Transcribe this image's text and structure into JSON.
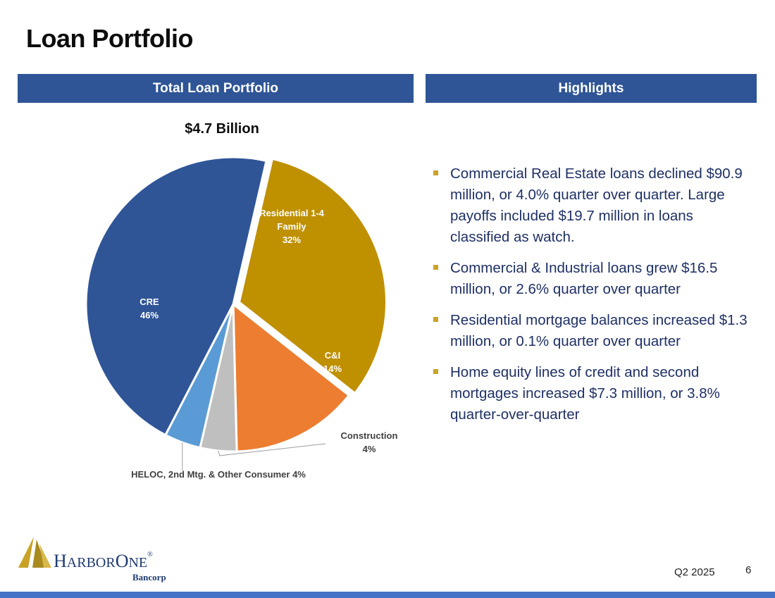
{
  "page": {
    "title": "Loan Portfolio",
    "footer_period": "Q2 2025",
    "page_number": "6"
  },
  "left_panel": {
    "header": "Total Loan Portfolio",
    "total_label": "$4.7 Billion"
  },
  "right_panel": {
    "header": "Highlights",
    "bullets": [
      "Commercial Real Estate loans declined $90.9 million, or 4.0% quarter over quarter. Large payoffs included $19.7 million in loans classified as watch.",
      "Commercial & Industrial loans grew $16.5 million, or 2.6% quarter over quarter",
      "Residential mortgage balances increased $1.3 million, or 0.1% quarter over quarter",
      "Home equity lines of credit and second mortgages increased $7.3 million, or 3.8% quarter-over-quarter"
    ]
  },
  "logo": {
    "name_h": "H",
    "name_arbor": "ARBOR",
    "name_o": "O",
    "name_ne": "NE",
    "registered": "®",
    "sub": "Bancorp",
    "icon": "harborone-sail-icon"
  },
  "colors": {
    "header_bg": "#2f5597",
    "bullet": "#c9a227",
    "bottom_bar": "#4472c4"
  },
  "chart_data": {
    "type": "pie",
    "title": "$4.7 Billion",
    "slices": [
      {
        "label": "Residential 1-4 Family",
        "value": 32,
        "display": "32%",
        "color": "#bf9000"
      },
      {
        "label": "C&I",
        "value": 14,
        "display": "14%",
        "color": "#ed7d31"
      },
      {
        "label": "Construction",
        "value": 4,
        "display": "4%",
        "color": "#bfbfbf"
      },
      {
        "label": "HELOC, 2nd Mtg. & Other Consumer",
        "value": 4,
        "display": "4%",
        "color": "#5b9bd5"
      },
      {
        "label": "CRE",
        "value": 46,
        "display": "46%",
        "color": "#2f5597"
      }
    ],
    "legend": "none"
  }
}
